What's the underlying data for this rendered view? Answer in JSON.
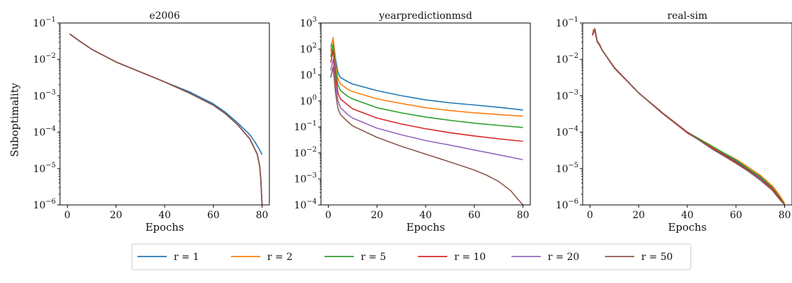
{
  "figure": {
    "ylabel": "Suboptimality",
    "colors": [
      "#1f77b4",
      "#ff7f0e",
      "#2ca02c",
      "#d62728",
      "#9467bd",
      "#8c564b"
    ],
    "legend": {
      "placement": "bottom-center",
      "entries": [
        "r = 1",
        "r = 2",
        "r = 5",
        "r = 10",
        "r = 20",
        "r = 50"
      ]
    }
  },
  "chart_data": [
    {
      "type": "line",
      "title": "e2006",
      "xlabel": "Epochs",
      "ylabel": "Suboptimality",
      "xlim": [
        -3,
        83
      ],
      "xticks": [
        0,
        20,
        40,
        60,
        80
      ],
      "yscale": "log",
      "ylim_exp": [
        -6,
        -1
      ],
      "grid": false,
      "series": [
        {
          "name": "r = 1",
          "x": [
            1,
            5,
            10,
            20,
            30,
            40,
            50,
            60,
            65,
            70,
            75,
            77,
            79,
            80
          ],
          "y": [
            0.05,
            0.032,
            0.019,
            0.0085,
            0.0045,
            0.0024,
            0.0013,
            0.0006,
            0.00035,
            0.00018,
            8.5e-05,
            5.5e-05,
            3.3e-05,
            2.4e-05
          ]
        },
        {
          "name": "r = 2",
          "x": [
            1,
            5,
            10,
            20,
            30,
            40,
            50,
            60,
            65,
            70,
            75,
            78,
            79,
            79.5,
            80
          ],
          "y": [
            0.05,
            0.032,
            0.019,
            0.0085,
            0.0045,
            0.0024,
            0.0012,
            0.00055,
            0.00032,
            0.00016,
            6.5e-05,
            2.5e-05,
            1.2e-05,
            5e-06,
            1e-06
          ]
        },
        {
          "name": "r = 5",
          "x": [
            1,
            5,
            10,
            20,
            30,
            40,
            50,
            60,
            65,
            70,
            75,
            78,
            79,
            79.5,
            80
          ],
          "y": [
            0.05,
            0.032,
            0.019,
            0.0085,
            0.0045,
            0.0024,
            0.0012,
            0.00055,
            0.00032,
            0.00016,
            6.5e-05,
            2.5e-05,
            1.2e-05,
            5e-06,
            1e-06
          ]
        },
        {
          "name": "r = 10",
          "x": [
            1,
            5,
            10,
            20,
            30,
            40,
            50,
            60,
            65,
            70,
            75,
            78,
            79,
            79.5,
            80
          ],
          "y": [
            0.05,
            0.032,
            0.019,
            0.0085,
            0.0045,
            0.0024,
            0.0012,
            0.00055,
            0.00032,
            0.00016,
            6.5e-05,
            2.5e-05,
            1.2e-05,
            5e-06,
            1e-06
          ]
        },
        {
          "name": "r = 20",
          "x": [
            1,
            5,
            10,
            20,
            30,
            40,
            50,
            60,
            65,
            70,
            75,
            78,
            79,
            79.5,
            80
          ],
          "y": [
            0.05,
            0.032,
            0.019,
            0.0085,
            0.0045,
            0.0024,
            0.0012,
            0.00055,
            0.00032,
            0.00016,
            6.5e-05,
            2.5e-05,
            1.2e-05,
            5e-06,
            1e-06
          ]
        },
        {
          "name": "r = 50",
          "x": [
            1,
            5,
            10,
            20,
            30,
            40,
            50,
            60,
            65,
            70,
            75,
            78,
            79,
            79.5,
            80
          ],
          "y": [
            0.05,
            0.032,
            0.019,
            0.0085,
            0.0045,
            0.0024,
            0.0012,
            0.00055,
            0.00032,
            0.00016,
            6.5e-05,
            2.5e-05,
            1.2e-05,
            5e-06,
            1e-06
          ]
        }
      ]
    },
    {
      "type": "line",
      "title": "yearpredictionmsd",
      "xlabel": "Epochs",
      "xlim": [
        -3,
        83
      ],
      "xticks": [
        0,
        20,
        40,
        60,
        80
      ],
      "yscale": "log",
      "ylim_exp": [
        -4,
        3
      ],
      "grid": false,
      "series": [
        {
          "name": "r = 1",
          "x": [
            1,
            2,
            3,
            4,
            5,
            8,
            10,
            20,
            30,
            40,
            50,
            60,
            70,
            80
          ],
          "y": [
            120,
            250,
            40,
            12,
            8,
            5.5,
            4.5,
            2.5,
            1.6,
            1.1,
            0.85,
            0.7,
            0.57,
            0.45
          ]
        },
        {
          "name": "r = 2",
          "x": [
            1,
            2,
            3,
            4,
            5,
            8,
            10,
            20,
            30,
            40,
            50,
            60,
            70,
            80
          ],
          "y": [
            80,
            280,
            25,
            7,
            4.5,
            2.8,
            2.3,
            1.2,
            0.8,
            0.55,
            0.43,
            0.35,
            0.3,
            0.26
          ]
        },
        {
          "name": "r = 5",
          "x": [
            1,
            2,
            3,
            4,
            5,
            8,
            10,
            20,
            30,
            40,
            50,
            60,
            70,
            80
          ],
          "y": [
            50,
            150,
            15,
            4,
            2.5,
            1.5,
            1.2,
            0.55,
            0.35,
            0.24,
            0.18,
            0.14,
            0.115,
            0.095
          ]
        },
        {
          "name": "r = 10",
          "x": [
            1,
            2,
            3,
            4,
            5,
            8,
            10,
            20,
            30,
            40,
            50,
            60,
            70,
            80
          ],
          "y": [
            30,
            90,
            8,
            2,
            1.2,
            0.7,
            0.5,
            0.22,
            0.13,
            0.085,
            0.06,
            0.045,
            0.035,
            0.028
          ]
        },
        {
          "name": "r = 20",
          "x": [
            1,
            2,
            3,
            4,
            5,
            8,
            10,
            20,
            30,
            40,
            50,
            60,
            70,
            80
          ],
          "y": [
            15,
            40,
            4,
            1,
            0.55,
            0.3,
            0.22,
            0.09,
            0.05,
            0.03,
            0.02,
            0.013,
            0.0085,
            0.0055
          ]
        },
        {
          "name": "r = 50",
          "x": [
            1,
            2,
            3,
            4,
            5,
            8,
            10,
            20,
            30,
            40,
            50,
            60,
            65,
            70,
            75,
            78,
            80
          ],
          "y": [
            8,
            20,
            2,
            0.5,
            0.3,
            0.16,
            0.11,
            0.04,
            0.018,
            0.009,
            0.0045,
            0.0022,
            0.0014,
            0.0008,
            0.00035,
            0.00016,
            0.0001
          ]
        }
      ]
    },
    {
      "type": "line",
      "title": "real-sim",
      "xlabel": "Epochs",
      "xlim": [
        -3,
        83
      ],
      "xticks": [
        0,
        20,
        40,
        60,
        80
      ],
      "yscale": "log",
      "ylim_exp": [
        -6,
        -1
      ],
      "grid": false,
      "series": [
        {
          "name": "r = 1",
          "x": [
            1,
            2,
            3,
            4,
            5,
            10,
            20,
            30,
            40,
            50,
            60,
            65,
            70,
            75,
            78,
            80
          ],
          "y": [
            0.05,
            0.065,
            0.03,
            0.025,
            0.018,
            0.006,
            0.0012,
            0.00033,
            0.0001,
            3.8e-05,
            1.6e-05,
            9.5e-06,
            5.5e-06,
            3e-06,
            1.7e-06,
            1e-06
          ]
        },
        {
          "name": "r = 2",
          "x": [
            1,
            2,
            3,
            4,
            5,
            10,
            20,
            30,
            40,
            50,
            60,
            65,
            70,
            75,
            78,
            80
          ],
          "y": [
            0.06,
            0.07,
            0.033,
            0.026,
            0.018,
            0.006,
            0.0012,
            0.00033,
            0.0001,
            4e-05,
            1.8e-05,
            1.1e-05,
            6.5e-06,
            3.3e-06,
            1.8e-06,
            1.1e-06
          ]
        },
        {
          "name": "r = 5",
          "x": [
            1,
            2,
            3,
            4,
            5,
            10,
            20,
            30,
            40,
            50,
            60,
            65,
            70,
            75,
            78,
            80
          ],
          "y": [
            0.05,
            0.06,
            0.03,
            0.025,
            0.018,
            0.0058,
            0.0012,
            0.00032,
            0.0001,
            4.2e-05,
            1.7e-05,
            1e-05,
            6e-06,
            3e-06,
            1.6e-06,
            1e-06
          ]
        },
        {
          "name": "r = 10",
          "x": [
            1,
            2,
            3,
            4,
            5,
            10,
            20,
            30,
            40,
            50,
            60,
            65,
            70,
            75,
            78,
            80
          ],
          "y": [
            0.045,
            0.065,
            0.03,
            0.024,
            0.018,
            0.0058,
            0.0012,
            0.00032,
            9.5e-05,
            3.8e-05,
            1.5e-05,
            9e-06,
            5.2e-06,
            2.8e-06,
            1.5e-06,
            1e-06
          ]
        },
        {
          "name": "r = 20",
          "x": [
            1,
            2,
            3,
            4,
            5,
            10,
            20,
            30,
            40,
            50,
            60,
            65,
            70,
            75,
            78,
            80
          ],
          "y": [
            0.05,
            0.06,
            0.03,
            0.025,
            0.018,
            0.006,
            0.0012,
            0.00033,
            0.0001,
            3.5e-05,
            1.4e-05,
            8.5e-06,
            5e-06,
            2.5e-06,
            1.4e-06,
            1e-06
          ]
        },
        {
          "name": "r = 50",
          "x": [
            1,
            2,
            3,
            4,
            5,
            10,
            20,
            30,
            40,
            50,
            60,
            65,
            70,
            75,
            78,
            80
          ],
          "y": [
            0.05,
            0.07,
            0.03,
            0.025,
            0.018,
            0.006,
            0.0012,
            0.00033,
            0.0001,
            3.6e-05,
            1.4e-05,
            8.5e-06,
            4.8e-06,
            2.5e-06,
            1.4e-06,
            1e-06
          ]
        }
      ]
    }
  ]
}
